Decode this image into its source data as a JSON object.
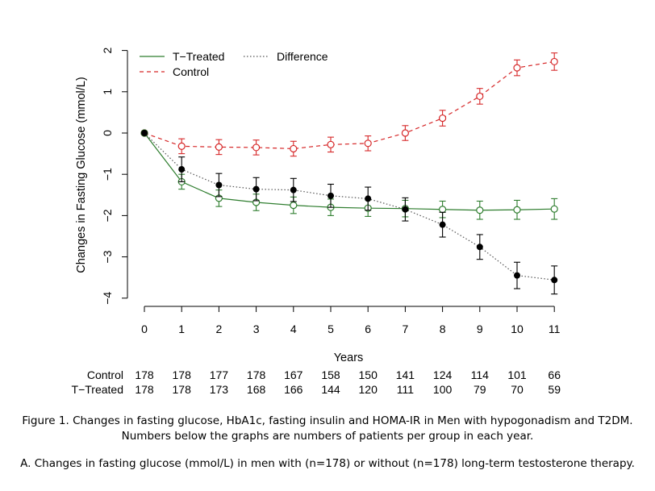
{
  "chart_data": {
    "type": "line",
    "title": "",
    "xlabel": "Years",
    "ylabel": "Changes in Fasting Glucose (mmol/L)",
    "x": [
      0,
      1,
      2,
      3,
      4,
      5,
      6,
      7,
      8,
      9,
      10,
      11
    ],
    "x_ticks": [
      "0",
      "1",
      "2",
      "3",
      "4",
      "5",
      "6",
      "7",
      "8",
      "9",
      "10",
      "11"
    ],
    "y_ticks": [
      "-4",
      "-3",
      "-2",
      "-1",
      "0",
      "1",
      "2"
    ],
    "ylim": [
      -4,
      2
    ],
    "xlim": [
      0,
      11
    ],
    "grid": false,
    "legend_position": "top-left",
    "series": [
      {
        "name": "T-Treated",
        "color": "#2e7d2e",
        "line_style": "solid",
        "marker": "open-circle",
        "values": [
          0,
          -1.18,
          -1.58,
          -1.68,
          -1.75,
          -1.8,
          -1.82,
          -1.83,
          -1.85,
          -1.87,
          -1.86,
          -1.84
        ],
        "error": [
          0,
          0.18,
          0.2,
          0.2,
          0.2,
          0.2,
          0.2,
          0.2,
          0.2,
          0.22,
          0.23,
          0.25
        ]
      },
      {
        "name": "Control",
        "color": "#d62728",
        "line_style": "dashed",
        "marker": "open-circle",
        "values": [
          0,
          -0.32,
          -0.34,
          -0.35,
          -0.38,
          -0.28,
          -0.25,
          0.0,
          0.36,
          0.89,
          1.58,
          1.73
        ],
        "error": [
          0,
          0.18,
          0.18,
          0.18,
          0.18,
          0.18,
          0.18,
          0.18,
          0.19,
          0.19,
          0.19,
          0.21
        ]
      },
      {
        "name": "Difference",
        "color": "#555555",
        "line_style": "dotted",
        "marker": "filled-circle",
        "values": [
          0,
          -0.88,
          -1.26,
          -1.36,
          -1.38,
          -1.52,
          -1.59,
          -1.85,
          -2.22,
          -2.76,
          -3.45,
          -3.56
        ],
        "error": [
          0,
          0.3,
          0.28,
          0.28,
          0.28,
          0.28,
          0.28,
          0.28,
          0.3,
          0.3,
          0.32,
          0.34
        ]
      }
    ],
    "patients_table": {
      "rows": [
        {
          "label": "Control",
          "values": [
            "178",
            "178",
            "177",
            "178",
            "167",
            "158",
            "150",
            "141",
            "124",
            "114",
            "101",
            "66"
          ]
        },
        {
          "label": "T−Treated",
          "values": [
            "178",
            "178",
            "173",
            "168",
            "166",
            "144",
            "120",
            "111",
            "100",
            "79",
            "70",
            "59"
          ]
        }
      ]
    },
    "legend": {
      "items": [
        {
          "label": "T−Treated",
          "series": 0
        },
        {
          "label": "Control",
          "series": 1
        },
        {
          "label": "Difference",
          "series": 2
        }
      ]
    }
  },
  "caption": {
    "figure": "Figure 1. Changes in fasting glucose, HbA1c, fasting insulin and HOMA-IR in Men with hypogonadism and T2DM. Numbers below the graphs are numbers of patients per group in each year.",
    "panel": "A. Changes in fasting glucose (mmol/L) in men with (n=178) or without (n=178) long-term testosterone therapy."
  }
}
